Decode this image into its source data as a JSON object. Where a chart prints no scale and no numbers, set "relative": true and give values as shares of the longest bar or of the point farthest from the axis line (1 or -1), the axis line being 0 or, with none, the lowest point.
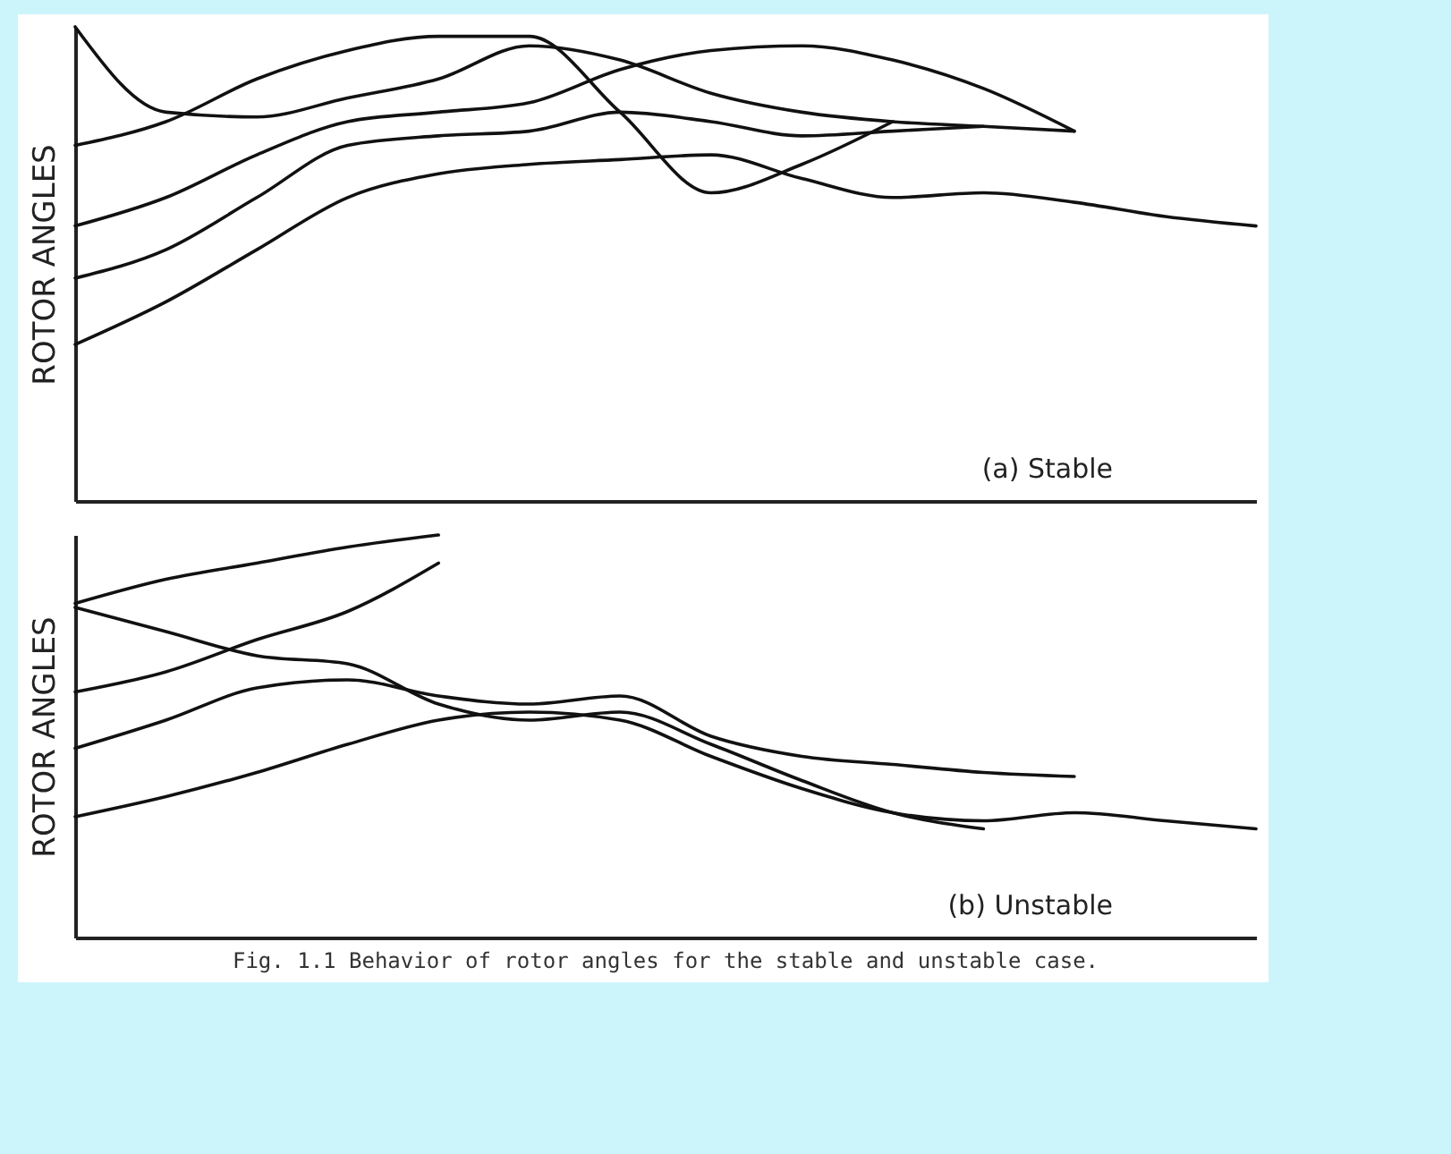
{
  "chart_data": [
    {
      "type": "line",
      "relative": true,
      "ylabel": "ROTOR ANGLES",
      "annotations": [
        "(a) Stable"
      ],
      "legend": false,
      "grid": false,
      "categories": [
        null,
        null,
        null,
        null,
        null,
        null,
        null,
        null,
        null,
        null,
        null,
        null,
        null,
        null
      ],
      "series": [
        {
          "color": "#111111",
          "values": [
            1.0,
            0.82,
            0.81,
            0.85,
            0.89,
            0.96,
            0.93,
            0.86,
            0.82,
            0.8,
            0.79,
            0.78,
            null,
            null
          ]
        },
        {
          "color": "#111111",
          "values": [
            0.75,
            0.8,
            0.89,
            0.95,
            0.98,
            0.98,
            0.82,
            0.65,
            0.71,
            0.8,
            null,
            null,
            null,
            null
          ]
        },
        {
          "color": "#111111",
          "values": [
            0.58,
            0.64,
            0.73,
            0.8,
            0.82,
            0.84,
            0.91,
            0.95,
            0.96,
            0.93,
            0.87,
            0.78,
            null,
            null
          ]
        },
        {
          "color": "#111111",
          "values": [
            0.47,
            0.53,
            0.64,
            0.75,
            0.77,
            0.78,
            0.82,
            0.8,
            0.77,
            0.78,
            0.79,
            null,
            null,
            null
          ]
        },
        {
          "color": "#111111",
          "values": [
            0.33,
            0.42,
            0.53,
            0.64,
            0.69,
            0.71,
            0.72,
            0.73,
            0.68,
            0.64,
            0.65,
            0.63,
            0.6,
            0.58
          ]
        }
      ]
    },
    {
      "type": "line",
      "relative": true,
      "ylabel": "ROTOR ANGLES",
      "annotations": [
        "(b) Unstable",
        "Fig. 1.1  Behavior of rotor angles for the stable and unstable case."
      ],
      "legend": false,
      "grid": false,
      "categories": [
        null,
        null,
        null,
        null,
        null,
        null,
        null,
        null,
        null,
        null,
        null,
        null,
        null,
        null
      ],
      "series": [
        {
          "color": "#111111",
          "values": [
            0.83,
            0.89,
            0.93,
            0.97,
            1.0,
            null,
            null,
            null,
            null,
            null,
            null,
            null,
            null,
            null
          ]
        },
        {
          "color": "#111111",
          "values": [
            0.61,
            0.66,
            0.74,
            0.81,
            0.93,
            null,
            null,
            null,
            null,
            null,
            null,
            null,
            null,
            null
          ]
        },
        {
          "color": "#111111",
          "values": [
            0.82,
            0.76,
            0.7,
            0.68,
            0.58,
            0.54,
            0.56,
            0.48,
            0.39,
            0.31,
            0.27,
            null,
            null,
            null
          ]
        },
        {
          "color": "#111111",
          "values": [
            0.47,
            0.54,
            0.62,
            0.64,
            0.6,
            0.58,
            0.6,
            0.5,
            0.45,
            0.43,
            0.41,
            0.4,
            null,
            null
          ]
        },
        {
          "color": "#111111",
          "values": [
            0.3,
            0.35,
            0.41,
            0.48,
            0.54,
            0.56,
            0.54,
            0.45,
            0.37,
            0.31,
            0.29,
            0.31,
            0.29,
            0.27
          ]
        }
      ]
    }
  ]
}
